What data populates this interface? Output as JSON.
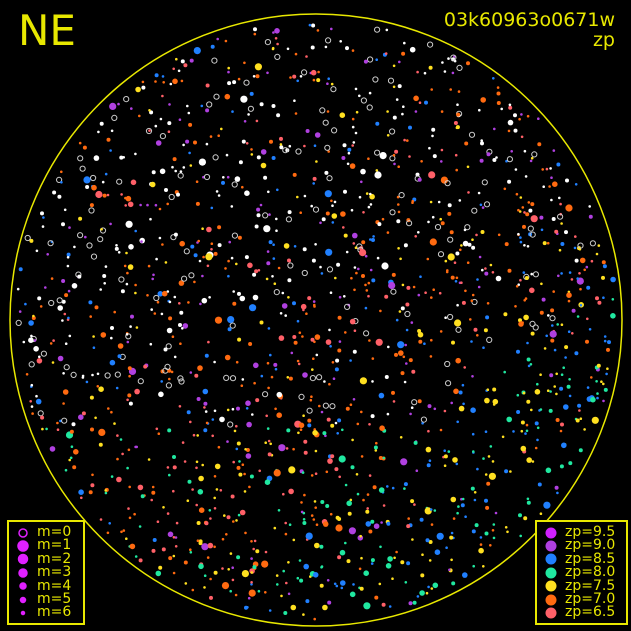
{
  "corner_label": "NE",
  "title": {
    "id": "03k60963o0671w",
    "subtitle": "zp"
  },
  "colors": {
    "frame": "#e8e800",
    "background": "#000000",
    "unmatched": "#ffffff"
  },
  "chart_data": {
    "type": "scatter",
    "description_axes": "none",
    "grid": false,
    "magnitude_legend": {
      "placement": "bottom-left",
      "entries": [
        {
          "label": "m=0",
          "symbol": "ring"
        },
        {
          "label": "m=1",
          "symbol": "dot"
        },
        {
          "label": "m=2",
          "symbol": "dot"
        },
        {
          "label": "m=3",
          "symbol": "dot"
        },
        {
          "label": "m=4",
          "symbol": "dot"
        },
        {
          "label": "m=5",
          "symbol": "dot"
        },
        {
          "label": "m=6",
          "symbol": "dot"
        }
      ],
      "color": "#e020ff"
    },
    "zp_legend": {
      "placement": "bottom-right",
      "entries": [
        {
          "label": "zp=9.5",
          "color": "#d020ff"
        },
        {
          "label": "zp=9.0",
          "color": "#b040e0"
        },
        {
          "label": "zp=8.5",
          "color": "#2080ff"
        },
        {
          "label": "zp=8.0",
          "color": "#20e8a0"
        },
        {
          "label": "zp=7.5",
          "color": "#ffe020"
        },
        {
          "label": "zp=7.0",
          "color": "#ff6a10"
        },
        {
          "label": "zp=6.5",
          "color": "#ff6068"
        }
      ]
    }
  }
}
